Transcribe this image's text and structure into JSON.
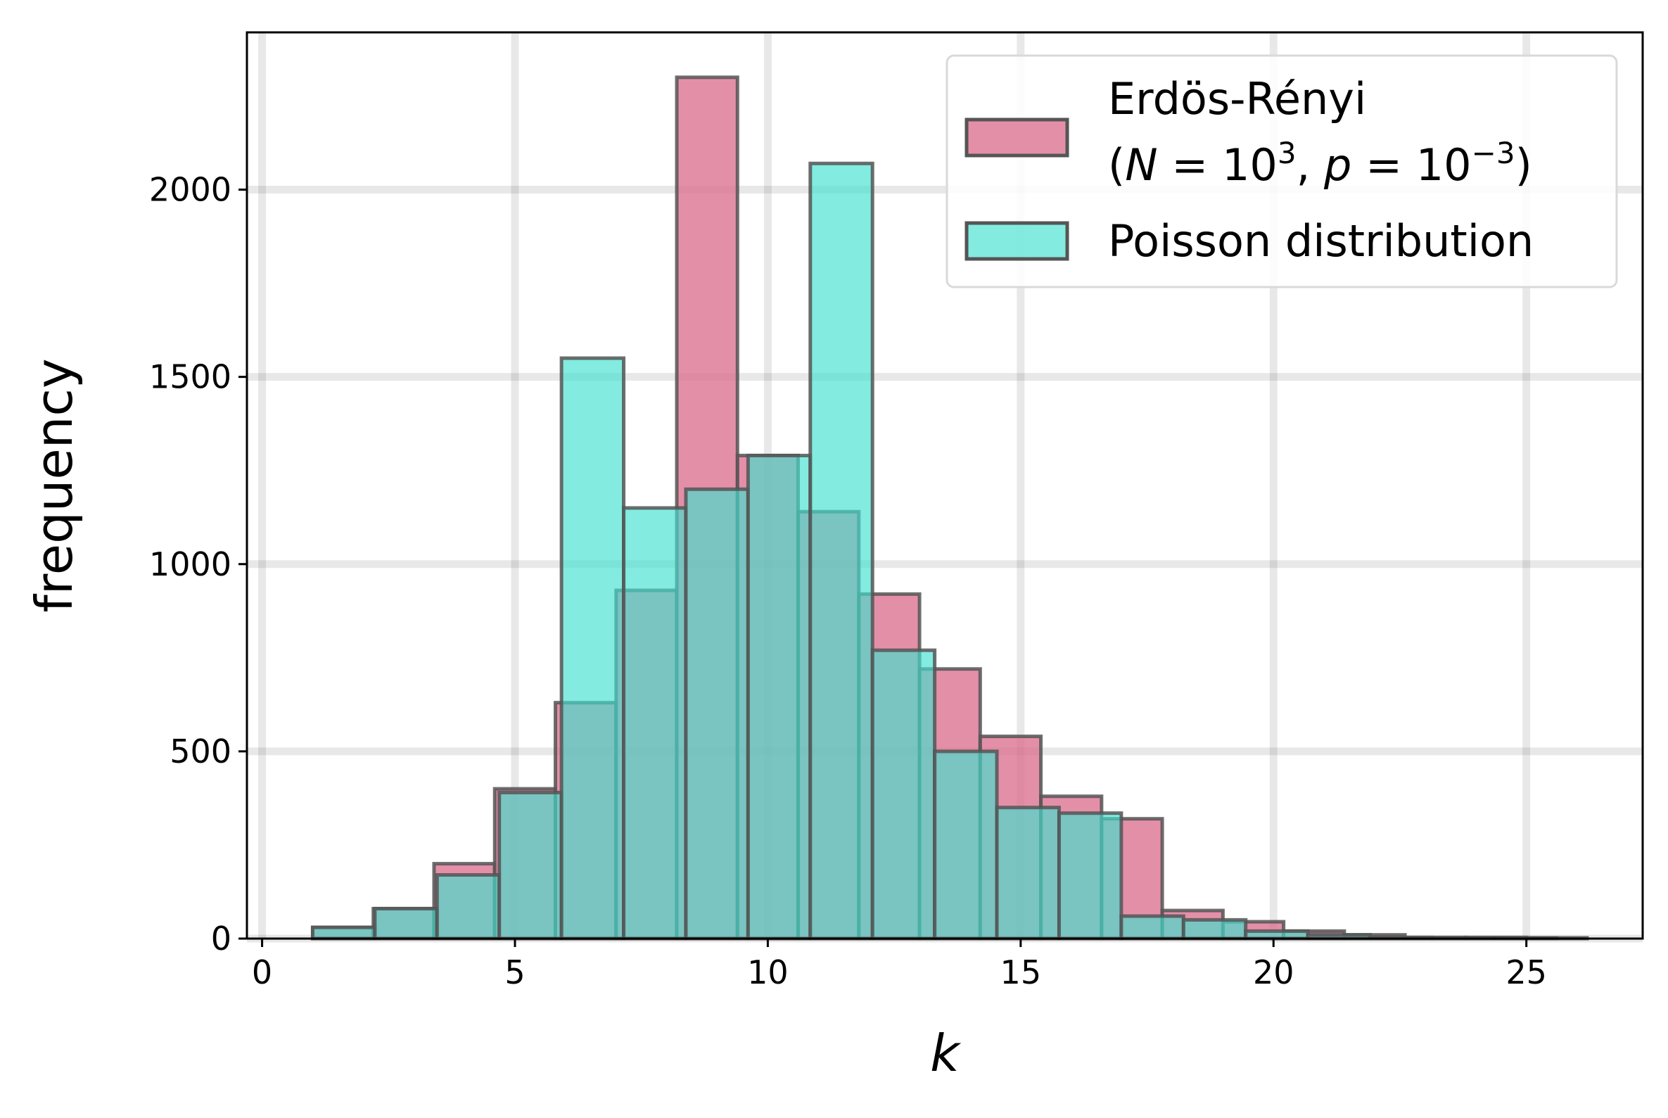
{
  "chart_data": {
    "type": "bar",
    "title": "",
    "xlabel": "k",
    "ylabel": "frequency",
    "xlim": [
      -0.3,
      27.3
    ],
    "ylim": [
      0,
      2420
    ],
    "xticks": [
      0,
      5,
      10,
      15,
      20,
      25
    ],
    "yticks": [
      0,
      500,
      1000,
      1500,
      2000
    ],
    "grid": true,
    "legend_position": "top-right",
    "series": [
      {
        "name": "Erdös-Rényi",
        "name_line2_prefix": "(",
        "name_line2_N": "N",
        "name_line2_eq1": " = 10",
        "name_line2_exp1": "3",
        "name_line2_comma": ", ",
        "name_line2_p": "p",
        "name_line2_eq2": " = 10",
        "name_line2_exp2": "−3",
        "name_line2_suffix": ")",
        "color": "#dc7090",
        "edge_color": "#555555",
        "bins": [
          {
            "left": 1.0,
            "right": 2.2,
            "value": 30
          },
          {
            "left": 2.2,
            "right": 3.4,
            "value": 80
          },
          {
            "left": 3.4,
            "right": 4.6,
            "value": 200
          },
          {
            "left": 4.6,
            "right": 5.8,
            "value": 400
          },
          {
            "left": 5.8,
            "right": 7.0,
            "value": 630
          },
          {
            "left": 7.0,
            "right": 8.2,
            "value": 930
          },
          {
            "left": 8.2,
            "right": 9.4,
            "value": 2300
          },
          {
            "left": 9.4,
            "right": 10.6,
            "value": 1290
          },
          {
            "left": 10.6,
            "right": 11.8,
            "value": 1140
          },
          {
            "left": 11.8,
            "right": 13.0,
            "value": 920
          },
          {
            "left": 13.0,
            "right": 14.2,
            "value": 720
          },
          {
            "left": 14.2,
            "right": 15.4,
            "value": 540
          },
          {
            "left": 15.4,
            "right": 16.6,
            "value": 380
          },
          {
            "left": 16.6,
            "right": 17.8,
            "value": 320
          },
          {
            "left": 17.8,
            "right": 19.0,
            "value": 75
          },
          {
            "left": 19.0,
            "right": 20.2,
            "value": 45
          },
          {
            "left": 20.2,
            "right": 21.4,
            "value": 20
          },
          {
            "left": 21.4,
            "right": 22.6,
            "value": 10
          },
          {
            "left": 22.6,
            "right": 23.8,
            "value": 3
          },
          {
            "left": 23.8,
            "right": 25.0,
            "value": 3
          },
          {
            "left": 25.0,
            "right": 26.2,
            "value": 2
          }
        ]
      },
      {
        "name": "Poisson distribution",
        "color": "#40e0d0",
        "edge_color": "#555555",
        "bins": [
          {
            "left": 1.0,
            "right": 2.23,
            "value": 30
          },
          {
            "left": 2.23,
            "right": 3.46,
            "value": 80
          },
          {
            "left": 3.46,
            "right": 4.69,
            "value": 170
          },
          {
            "left": 4.69,
            "right": 5.92,
            "value": 390
          },
          {
            "left": 5.92,
            "right": 7.15,
            "value": 1550
          },
          {
            "left": 7.15,
            "right": 8.38,
            "value": 1150
          },
          {
            "left": 8.38,
            "right": 9.61,
            "value": 1200
          },
          {
            "left": 9.61,
            "right": 10.84,
            "value": 1290
          },
          {
            "left": 10.84,
            "right": 12.07,
            "value": 2070
          },
          {
            "left": 12.07,
            "right": 13.3,
            "value": 770
          },
          {
            "left": 13.3,
            "right": 14.53,
            "value": 500
          },
          {
            "left": 14.53,
            "right": 15.76,
            "value": 350
          },
          {
            "left": 15.76,
            "right": 16.99,
            "value": 335
          },
          {
            "left": 16.99,
            "right": 18.22,
            "value": 60
          },
          {
            "left": 18.22,
            "right": 19.45,
            "value": 50
          },
          {
            "left": 19.45,
            "right": 20.68,
            "value": 20
          },
          {
            "left": 20.68,
            "right": 21.91,
            "value": 10
          },
          {
            "left": 21.91,
            "right": 23.14,
            "value": 3
          },
          {
            "left": 23.14,
            "right": 24.37,
            "value": 2
          },
          {
            "left": 24.37,
            "right": 25.6,
            "value": 2
          }
        ]
      }
    ]
  }
}
